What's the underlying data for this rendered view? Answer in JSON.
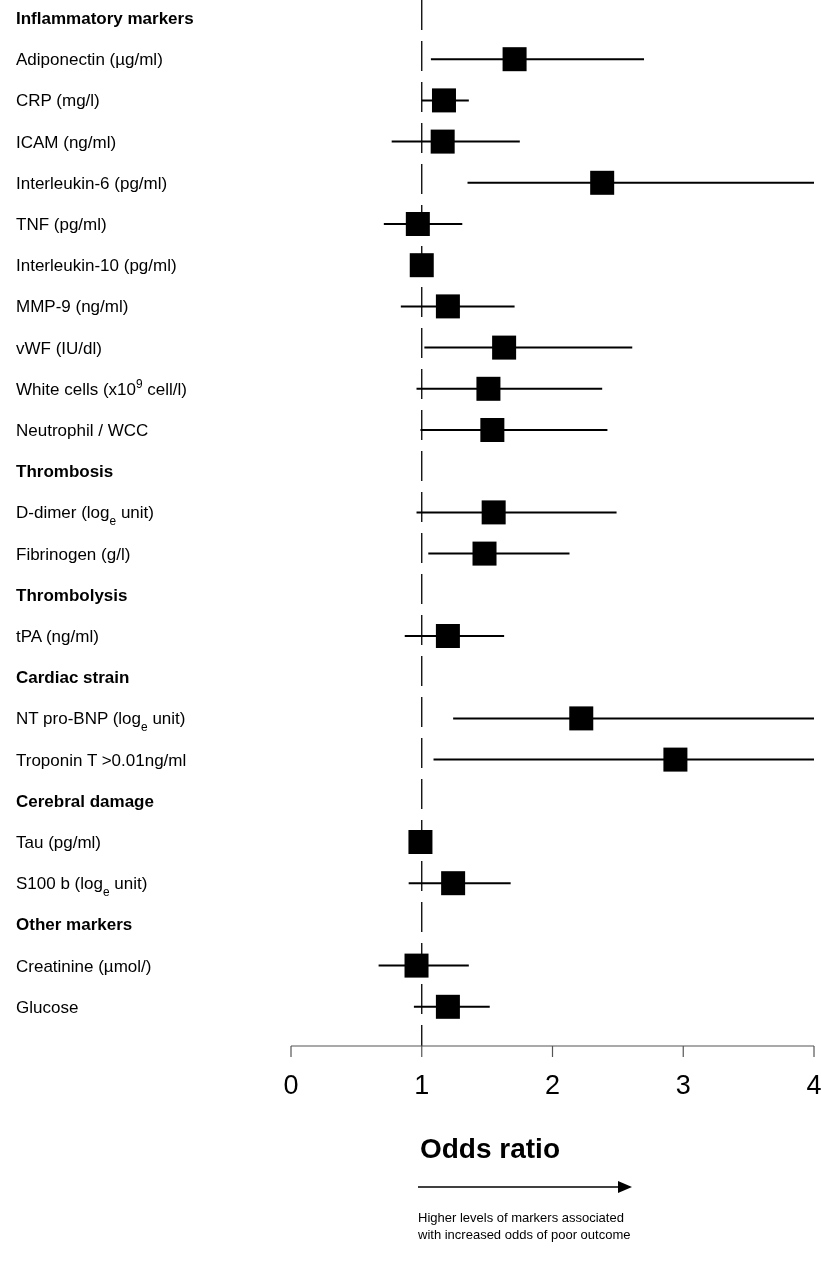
{
  "chart_data": {
    "type": "scatter",
    "orientation": "horizontal",
    "marker": "square",
    "categories": [
      "Inflammatory markers",
      "Adiponectin (µg/ml)",
      "CRP (mg/l)",
      "ICAM (ng/ml)",
      "Interleukin-6 (pg/ml)",
      "TNF (pg/ml)",
      "Interleukin-10 (pg/ml)",
      "MMP-9 (ng/ml)",
      "vWF (IU/dl)",
      "White cells (x10$^{9}$ cell/l)",
      "Neutrophil / WCC",
      "Thrombosis",
      "D-dimer (log$_{e}$ unit)",
      "Fibrinogen (g/l)",
      "Thrombolysis",
      "tPA (ng/ml)",
      "Cardiac strain",
      "NT pro-BNP (log$_{e}$ unit)",
      "Troponin T >0.01ng/ml",
      "Cerebral damage",
      "Tau (pg/ml)",
      "S100 b (log$_{e}$ unit)",
      "Other markers",
      "Creatinine (µmol/)",
      "Glucose"
    ],
    "series": [
      {
        "color": "#000000",
        "values": [
          null,
          1.71,
          1.17,
          1.16,
          2.38,
          0.97,
          1.0,
          1.2,
          1.63,
          1.51,
          1.54,
          null,
          1.55,
          1.48,
          null,
          1.2,
          null,
          2.22,
          2.94,
          null,
          0.99,
          1.24,
          null,
          0.96,
          1.2
        ],
        "errors": [
          null,
          [
            1.07,
            2.7
          ],
          [
            1.0,
            1.36
          ],
          [
            0.77,
            1.75
          ],
          [
            1.35,
            4.0
          ],
          [
            0.71,
            1.31
          ],
          null,
          [
            0.84,
            1.71
          ],
          [
            1.02,
            2.61
          ],
          [
            0.96,
            2.38
          ],
          [
            0.99,
            2.42
          ],
          null,
          [
            0.96,
            2.49
          ],
          [
            1.05,
            2.13
          ],
          null,
          [
            0.87,
            1.63
          ],
          null,
          [
            1.24,
            4.0
          ],
          [
            1.09,
            4.0
          ],
          null,
          null,
          [
            0.9,
            1.68
          ],
          null,
          [
            0.67,
            1.36
          ],
          [
            0.94,
            1.52
          ]
        ]
      }
    ],
    "xlim": [
      0,
      4
    ],
    "xticks": [
      0,
      1,
      2,
      3,
      4
    ],
    "xlabel": "Odds ratio",
    "ref_lines": [
      {
        "axis": "x",
        "value": 1,
        "color": "#000000",
        "line_style": "dashed"
      }
    ],
    "annotations": [
      "Higher levels of markers associated with increased odds of poor outcome"
    ]
  }
}
